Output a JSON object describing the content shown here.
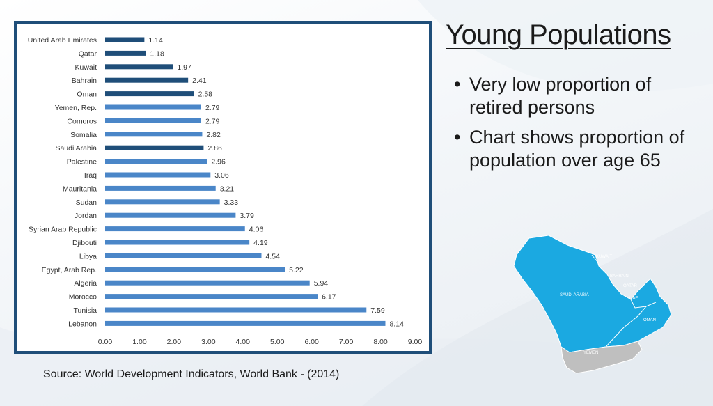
{
  "slide": {
    "title": "Young Populations",
    "bullets": [
      "Very low proportion of retired persons",
      "Chart shows proportion of population over age 65"
    ],
    "source": "Source: World Development Indicators, World Bank - (2014)"
  },
  "map": {
    "labels": {
      "kuwait": "KUWAIT",
      "bahrain": "BAHRAIN",
      "qatar": "QATAR",
      "uae": "UAE",
      "oman": "OMAN",
      "saudi": "SAUDI ARABIA",
      "yemen": "YEMEN"
    },
    "colors": {
      "gulf": "#1ba9e1",
      "yemen": "#bfbfbf"
    }
  },
  "chart_data": {
    "type": "bar",
    "orientation": "horizontal",
    "categories": [
      "United Arab Emirates",
      "Qatar",
      "Kuwait",
      "Bahrain",
      "Oman",
      "Yemen, Rep.",
      "Comoros",
      "Somalia",
      "Saudi Arabia",
      "Palestine",
      "Iraq",
      "Mauritania",
      "Sudan",
      "Jordan",
      "Syrian Arab Republic",
      "Djibouti",
      "Libya",
      "Egypt, Arab Rep.",
      "Algeria",
      "Morocco",
      "Tunisia",
      "Lebanon"
    ],
    "values": [
      1.14,
      1.18,
      1.97,
      2.41,
      2.58,
      2.79,
      2.79,
      2.82,
      2.86,
      2.96,
      3.06,
      3.21,
      3.33,
      3.79,
      4.06,
      4.19,
      4.54,
      5.22,
      5.94,
      6.17,
      7.59,
      8.14
    ],
    "value_labels": [
      "1.14",
      "1.18",
      "1.97",
      "2.41",
      "2.58",
      "2.79",
      "2.79",
      "2.82",
      "2.86",
      "2.96",
      "3.06",
      "3.21",
      "3.33",
      "3.79",
      "4.06",
      "4.19",
      "4.54",
      "5.22",
      "5.94",
      "6.17",
      "7.59",
      "8.14"
    ],
    "highlight": [
      true,
      true,
      true,
      true,
      true,
      false,
      false,
      false,
      true,
      false,
      false,
      false,
      false,
      false,
      false,
      false,
      false,
      false,
      false,
      false,
      false,
      false
    ],
    "colors": {
      "highlight": "#1f4e79",
      "normal": "#4a86c8"
    },
    "xlim": [
      0,
      9
    ],
    "xticks": [
      "0.00",
      "1.00",
      "2.00",
      "3.00",
      "4.00",
      "5.00",
      "6.00",
      "7.00",
      "8.00",
      "9.00"
    ],
    "grid": false,
    "legend": "none"
  }
}
